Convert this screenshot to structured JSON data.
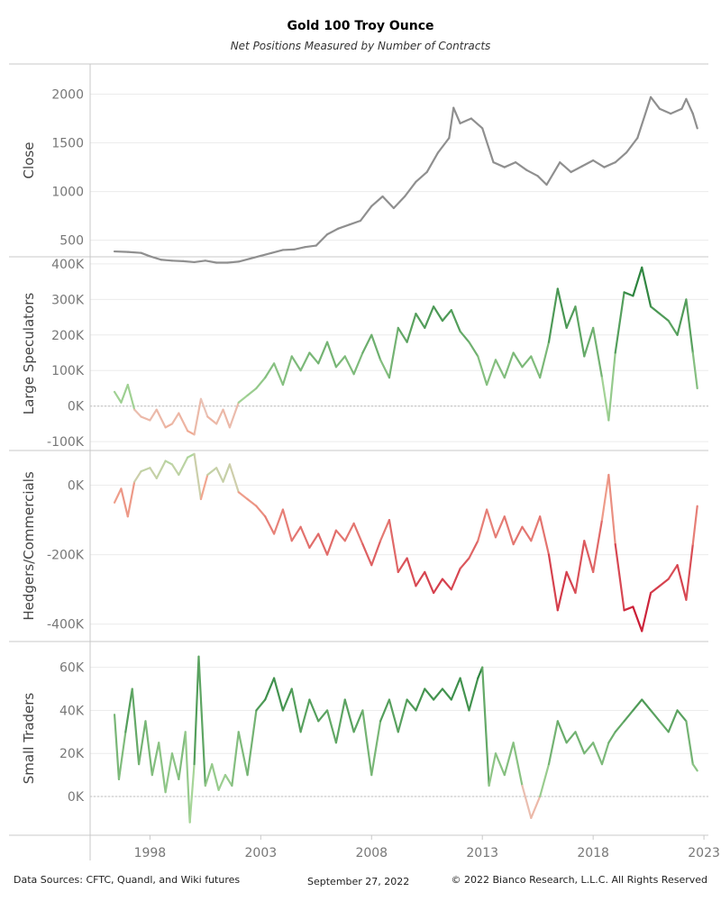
{
  "title": "Gold 100 Troy Ounce",
  "subtitle": "Net Positions Measured by Number of Contracts",
  "footer": {
    "sources": "Data Sources: CFTC, Quandl, and Wiki futures",
    "date": "September 27, 2022",
    "copyright": "© 2022 Bianco Research, L.L.C. All Rights Reserved"
  },
  "colors": {
    "close": "#8f8f8f",
    "positive_light": "#a9d79a",
    "positive_dark": "#1e7a34",
    "negative_light": "#f1a891",
    "negative_dark": "#c8102e"
  },
  "chart_data": {
    "type": "line",
    "x_range": [
      1995.3,
      2023.2
    ],
    "x_ticks": [
      1998,
      2003,
      2008,
      2013,
      2018,
      2023
    ],
    "x_tick_labels": [
      "1998",
      "2003",
      "2008",
      "2013",
      "2018",
      "2023"
    ],
    "panels": [
      {
        "ylabel": "Close",
        "ylim": [
          330,
          2310
        ],
        "yticks": [
          500,
          1000,
          1500,
          2000
        ],
        "ytick_labels": [
          "500",
          "1000",
          "1500",
          "2000"
        ],
        "zero_line": false,
        "colored": false,
        "x": [
          1996.4,
          1997.0,
          1997.6,
          1998.0,
          1998.5,
          1999.0,
          1999.5,
          2000.0,
          2000.5,
          2001.0,
          2001.5,
          2002.0,
          2002.5,
          2003.0,
          2003.5,
          2004.0,
          2004.5,
          2005.0,
          2005.5,
          2006.0,
          2006.5,
          2007.0,
          2007.5,
          2008.0,
          2008.5,
          2009.0,
          2009.5,
          2010.0,
          2010.5,
          2011.0,
          2011.5,
          2011.7,
          2012.0,
          2012.5,
          2013.0,
          2013.5,
          2014.0,
          2014.5,
          2015.0,
          2015.5,
          2015.9,
          2016.5,
          2017.0,
          2017.5,
          2018.0,
          2018.5,
          2019.0,
          2019.5,
          2020.0,
          2020.6,
          2021.0,
          2021.5,
          2022.0,
          2022.2,
          2022.5,
          2022.7
        ],
        "y": [
          385,
          380,
          370,
          335,
          300,
          290,
          285,
          275,
          290,
          270,
          270,
          280,
          310,
          340,
          370,
          400,
          405,
          430,
          445,
          560,
          620,
          660,
          700,
          850,
          950,
          830,
          950,
          1100,
          1200,
          1400,
          1550,
          1860,
          1700,
          1750,
          1650,
          1300,
          1250,
          1300,
          1220,
          1160,
          1070,
          1300,
          1200,
          1260,
          1320,
          1250,
          1300,
          1400,
          1550,
          1970,
          1850,
          1800,
          1850,
          1950,
          1800,
          1650
        ]
      },
      {
        "ylabel": "Large Speculators",
        "ylim": [
          -125000,
          420000
        ],
        "yticks": [
          -100000,
          0,
          100000,
          200000,
          300000,
          400000
        ],
        "ytick_labels": [
          "-100K",
          "0K",
          "100K",
          "200K",
          "300K",
          "400K"
        ],
        "zero_line": true,
        "colored": "positive",
        "x": [
          1996.4,
          1996.7,
          1997.0,
          1997.3,
          1997.6,
          1998.0,
          1998.3,
          1998.7,
          1999.0,
          1999.3,
          1999.7,
          2000.0,
          2000.3,
          2000.6,
          2001.0,
          2001.3,
          2001.6,
          2002.0,
          2002.4,
          2002.8,
          2003.2,
          2003.6,
          2004.0,
          2004.4,
          2004.8,
          2005.2,
          2005.6,
          2006.0,
          2006.4,
          2006.8,
          2007.2,
          2007.6,
          2008.0,
          2008.4,
          2008.8,
          2009.2,
          2009.6,
          2010.0,
          2010.4,
          2010.8,
          2011.2,
          2011.6,
          2012.0,
          2012.4,
          2012.8,
          2013.2,
          2013.6,
          2014.0,
          2014.4,
          2014.8,
          2015.2,
          2015.6,
          2016.0,
          2016.4,
          2016.8,
          2017.2,
          2017.6,
          2018.0,
          2018.4,
          2018.7,
          2019.0,
          2019.4,
          2019.8,
          2020.2,
          2020.6,
          2021.0,
          2021.4,
          2021.8,
          2022.2,
          2022.5,
          2022.7
        ],
        "y": [
          40000,
          10000,
          60000,
          -10000,
          -30000,
          -40000,
          -10000,
          -60000,
          -50000,
          -20000,
          -70000,
          -80000,
          20000,
          -30000,
          -50000,
          -10000,
          -60000,
          10000,
          30000,
          50000,
          80000,
          120000,
          60000,
          140000,
          100000,
          150000,
          120000,
          180000,
          110000,
          140000,
          90000,
          150000,
          200000,
          130000,
          80000,
          220000,
          180000,
          260000,
          220000,
          280000,
          240000,
          270000,
          210000,
          180000,
          140000,
          60000,
          130000,
          80000,
          150000,
          110000,
          140000,
          80000,
          180000,
          330000,
          220000,
          280000,
          140000,
          220000,
          80000,
          -40000,
          150000,
          320000,
          310000,
          390000,
          280000,
          260000,
          240000,
          200000,
          300000,
          150000,
          50000
        ]
      },
      {
        "ylabel": "Hedgers/Commercials",
        "ylim": [
          -450000,
          100000
        ],
        "yticks": [
          -400000,
          -200000,
          0
        ],
        "ytick_labels": [
          "-400K",
          "-200K",
          "0K"
        ],
        "zero_line": false,
        "colored": "negative",
        "x": [
          1996.4,
          1996.7,
          1997.0,
          1997.3,
          1997.6,
          1998.0,
          1998.3,
          1998.7,
          1999.0,
          1999.3,
          1999.7,
          2000.0,
          2000.3,
          2000.6,
          2001.0,
          2001.3,
          2001.6,
          2002.0,
          2002.4,
          2002.8,
          2003.2,
          2003.6,
          2004.0,
          2004.4,
          2004.8,
          2005.2,
          2005.6,
          2006.0,
          2006.4,
          2006.8,
          2007.2,
          2007.6,
          2008.0,
          2008.4,
          2008.8,
          2009.2,
          2009.6,
          2010.0,
          2010.4,
          2010.8,
          2011.2,
          2011.6,
          2012.0,
          2012.4,
          2012.8,
          2013.2,
          2013.6,
          2014.0,
          2014.4,
          2014.8,
          2015.2,
          2015.6,
          2016.0,
          2016.4,
          2016.8,
          2017.2,
          2017.6,
          2018.0,
          2018.4,
          2018.7,
          2019.0,
          2019.4,
          2019.8,
          2020.2,
          2020.6,
          2021.0,
          2021.4,
          2021.8,
          2022.2,
          2022.5,
          2022.7
        ],
        "y": [
          -50000,
          -10000,
          -90000,
          10000,
          40000,
          50000,
          20000,
          70000,
          60000,
          30000,
          80000,
          90000,
          -40000,
          30000,
          50000,
          10000,
          60000,
          -20000,
          -40000,
          -60000,
          -90000,
          -140000,
          -70000,
          -160000,
          -120000,
          -180000,
          -140000,
          -200000,
          -130000,
          -160000,
          -110000,
          -170000,
          -230000,
          -160000,
          -100000,
          -250000,
          -210000,
          -290000,
          -250000,
          -310000,
          -270000,
          -300000,
          -240000,
          -210000,
          -160000,
          -70000,
          -150000,
          -90000,
          -170000,
          -120000,
          -160000,
          -90000,
          -200000,
          -360000,
          -250000,
          -310000,
          -160000,
          -250000,
          -100000,
          30000,
          -170000,
          -360000,
          -350000,
          -420000,
          -310000,
          -290000,
          -270000,
          -230000,
          -330000,
          -170000,
          -60000
        ]
      },
      {
        "ylabel": "Small Traders",
        "ylim": [
          -18000,
          72000
        ],
        "yticks": [
          0,
          20000,
          40000,
          60000
        ],
        "ytick_labels": [
          "0K",
          "20K",
          "40K",
          "60K"
        ],
        "zero_line": true,
        "colored": "positive",
        "x": [
          1996.4,
          1996.6,
          1996.9,
          1997.2,
          1997.5,
          1997.8,
          1998.1,
          1998.4,
          1998.7,
          1999.0,
          1999.3,
          1999.6,
          1999.8,
          2000.0,
          2000.2,
          2000.5,
          2000.8,
          2001.1,
          2001.4,
          2001.7,
          2002.0,
          2002.4,
          2002.8,
          2003.2,
          2003.6,
          2004.0,
          2004.4,
          2004.8,
          2005.2,
          2005.6,
          2006.0,
          2006.4,
          2006.8,
          2007.2,
          2007.6,
          2008.0,
          2008.4,
          2008.8,
          2009.2,
          2009.6,
          2010.0,
          2010.4,
          2010.8,
          2011.2,
          2011.6,
          2012.0,
          2012.4,
          2012.8,
          2013.0,
          2013.3,
          2013.6,
          2014.0,
          2014.4,
          2014.8,
          2015.2,
          2015.6,
          2016.0,
          2016.4,
          2016.8,
          2017.2,
          2017.6,
          2018.0,
          2018.4,
          2018.7,
          2019.0,
          2019.4,
          2019.8,
          2020.2,
          2020.6,
          2021.0,
          2021.4,
          2021.8,
          2022.2,
          2022.5,
          2022.7
        ],
        "y": [
          38000,
          8000,
          30000,
          50000,
          15000,
          35000,
          10000,
          25000,
          2000,
          20000,
          8000,
          30000,
          -12000,
          15000,
          65000,
          5000,
          15000,
          3000,
          10000,
          5000,
          30000,
          10000,
          40000,
          45000,
          55000,
          40000,
          50000,
          30000,
          45000,
          35000,
          40000,
          25000,
          45000,
          30000,
          40000,
          10000,
          35000,
          45000,
          30000,
          45000,
          40000,
          50000,
          45000,
          50000,
          45000,
          55000,
          40000,
          55000,
          60000,
          5000,
          20000,
          10000,
          25000,
          5000,
          -10000,
          0,
          15000,
          35000,
          25000,
          30000,
          20000,
          25000,
          15000,
          25000,
          30000,
          35000,
          40000,
          45000,
          40000,
          35000,
          30000,
          40000,
          35000,
          15000,
          12000
        ]
      }
    ]
  }
}
